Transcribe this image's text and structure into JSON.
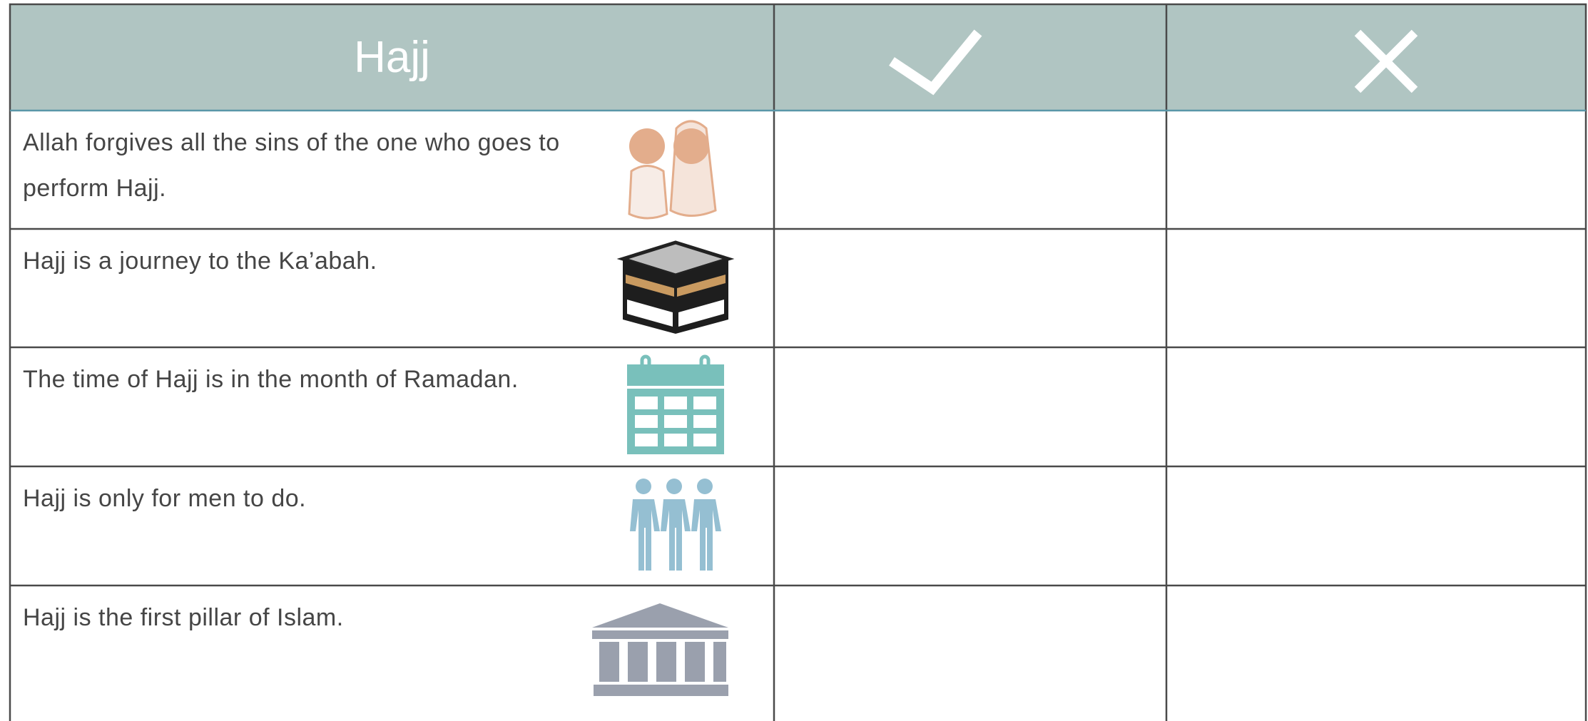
{
  "table": {
    "title": "Hajj",
    "rows": [
      "Allah forgives all the sins of the one who goes to perform Hajj.",
      "Hajj is a journey to the Ka’abah.",
      "The time of Hajj is in the month of Ramadan.",
      "Hajj is only for men to do.",
      "Hajj is the first pillar of Islam."
    ]
  }
}
